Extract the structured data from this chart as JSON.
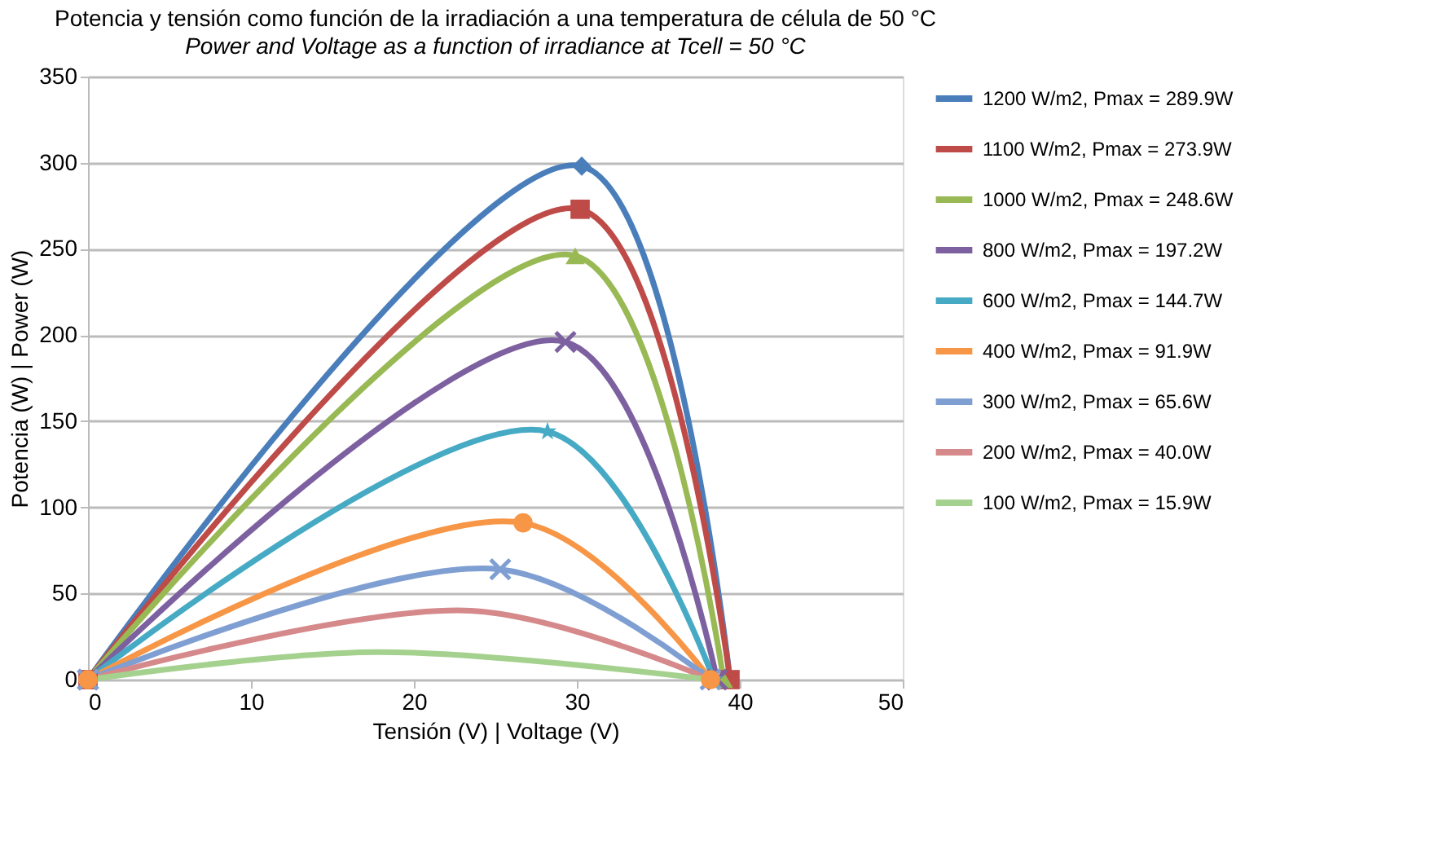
{
  "chart_data": {
    "type": "line",
    "title": "Potencia y tensión como función de la irradiación a una temperatura de célula de 50 °C",
    "subtitle": "Power and Voltage as a function of irradiance at Tcell = 50 °C",
    "xlabel": "Tensión (V) | Voltage (V)",
    "ylabel": "Potencia (W) | Power (W)",
    "xlim": [
      0,
      50
    ],
    "xticks": [
      0,
      10,
      20,
      30,
      40,
      50
    ],
    "ylim": [
      0,
      350
    ],
    "yticks": [
      0,
      50,
      100,
      150,
      200,
      250,
      300,
      350
    ],
    "grid": "y",
    "legend": "right",
    "series": [
      {
        "name": "1200 W/m2, Pmax = 289.9W",
        "color": "#4a7ebb",
        "marker": "diamond",
        "x": [
          0,
          30.3,
          39.4
        ],
        "values": [
          0,
          298,
          0
        ]
      },
      {
        "name": "1100 W/m2, Pmax = 273.9W",
        "color": "#be4b48",
        "marker": "square",
        "x": [
          0,
          30.2,
          39.4
        ],
        "values": [
          0,
          273,
          0
        ]
      },
      {
        "name": "1000 W/m2, Pmax = 248.6W",
        "color": "#98b954",
        "marker": "triangle",
        "x": [
          0,
          29.9,
          39.0
        ],
        "values": [
          0,
          246,
          0
        ]
      },
      {
        "name": "800 W/m2, Pmax = 197.2W",
        "color": "#7d60a0",
        "marker": "cross",
        "x": [
          0,
          29.3,
          38.6
        ],
        "values": [
          0,
          196,
          0
        ]
      },
      {
        "name": "600 W/m2, Pmax = 144.7W",
        "color": "#46aac5",
        "marker": "star",
        "x": [
          0,
          28.2,
          38.4
        ],
        "values": [
          0,
          144,
          0
        ]
      },
      {
        "name": "400 W/m2, Pmax = 91.9W",
        "color": "#f79646",
        "marker": "circle",
        "x": [
          0,
          26.7,
          38.2
        ],
        "values": [
          0,
          91,
          0
        ]
      },
      {
        "name": "300 W/m2, Pmax = 65.6W",
        "color": "#7f9fd3",
        "marker": "cross",
        "x": [
          0,
          25.3,
          38.2
        ],
        "values": [
          0,
          64,
          0
        ]
      },
      {
        "name": "200 W/m2, Pmax = 40.0W",
        "color": "#d5898a",
        "marker": "none",
        "x": [
          0,
          23.5,
          38.2
        ],
        "values": [
          0,
          40,
          0
        ]
      },
      {
        "name": "100 W/m2, Pmax = 15.9W",
        "color": "#a5d18e",
        "marker": "none",
        "x": [
          0,
          17.6,
          38.2
        ],
        "values": [
          0,
          16,
          0
        ]
      }
    ]
  }
}
